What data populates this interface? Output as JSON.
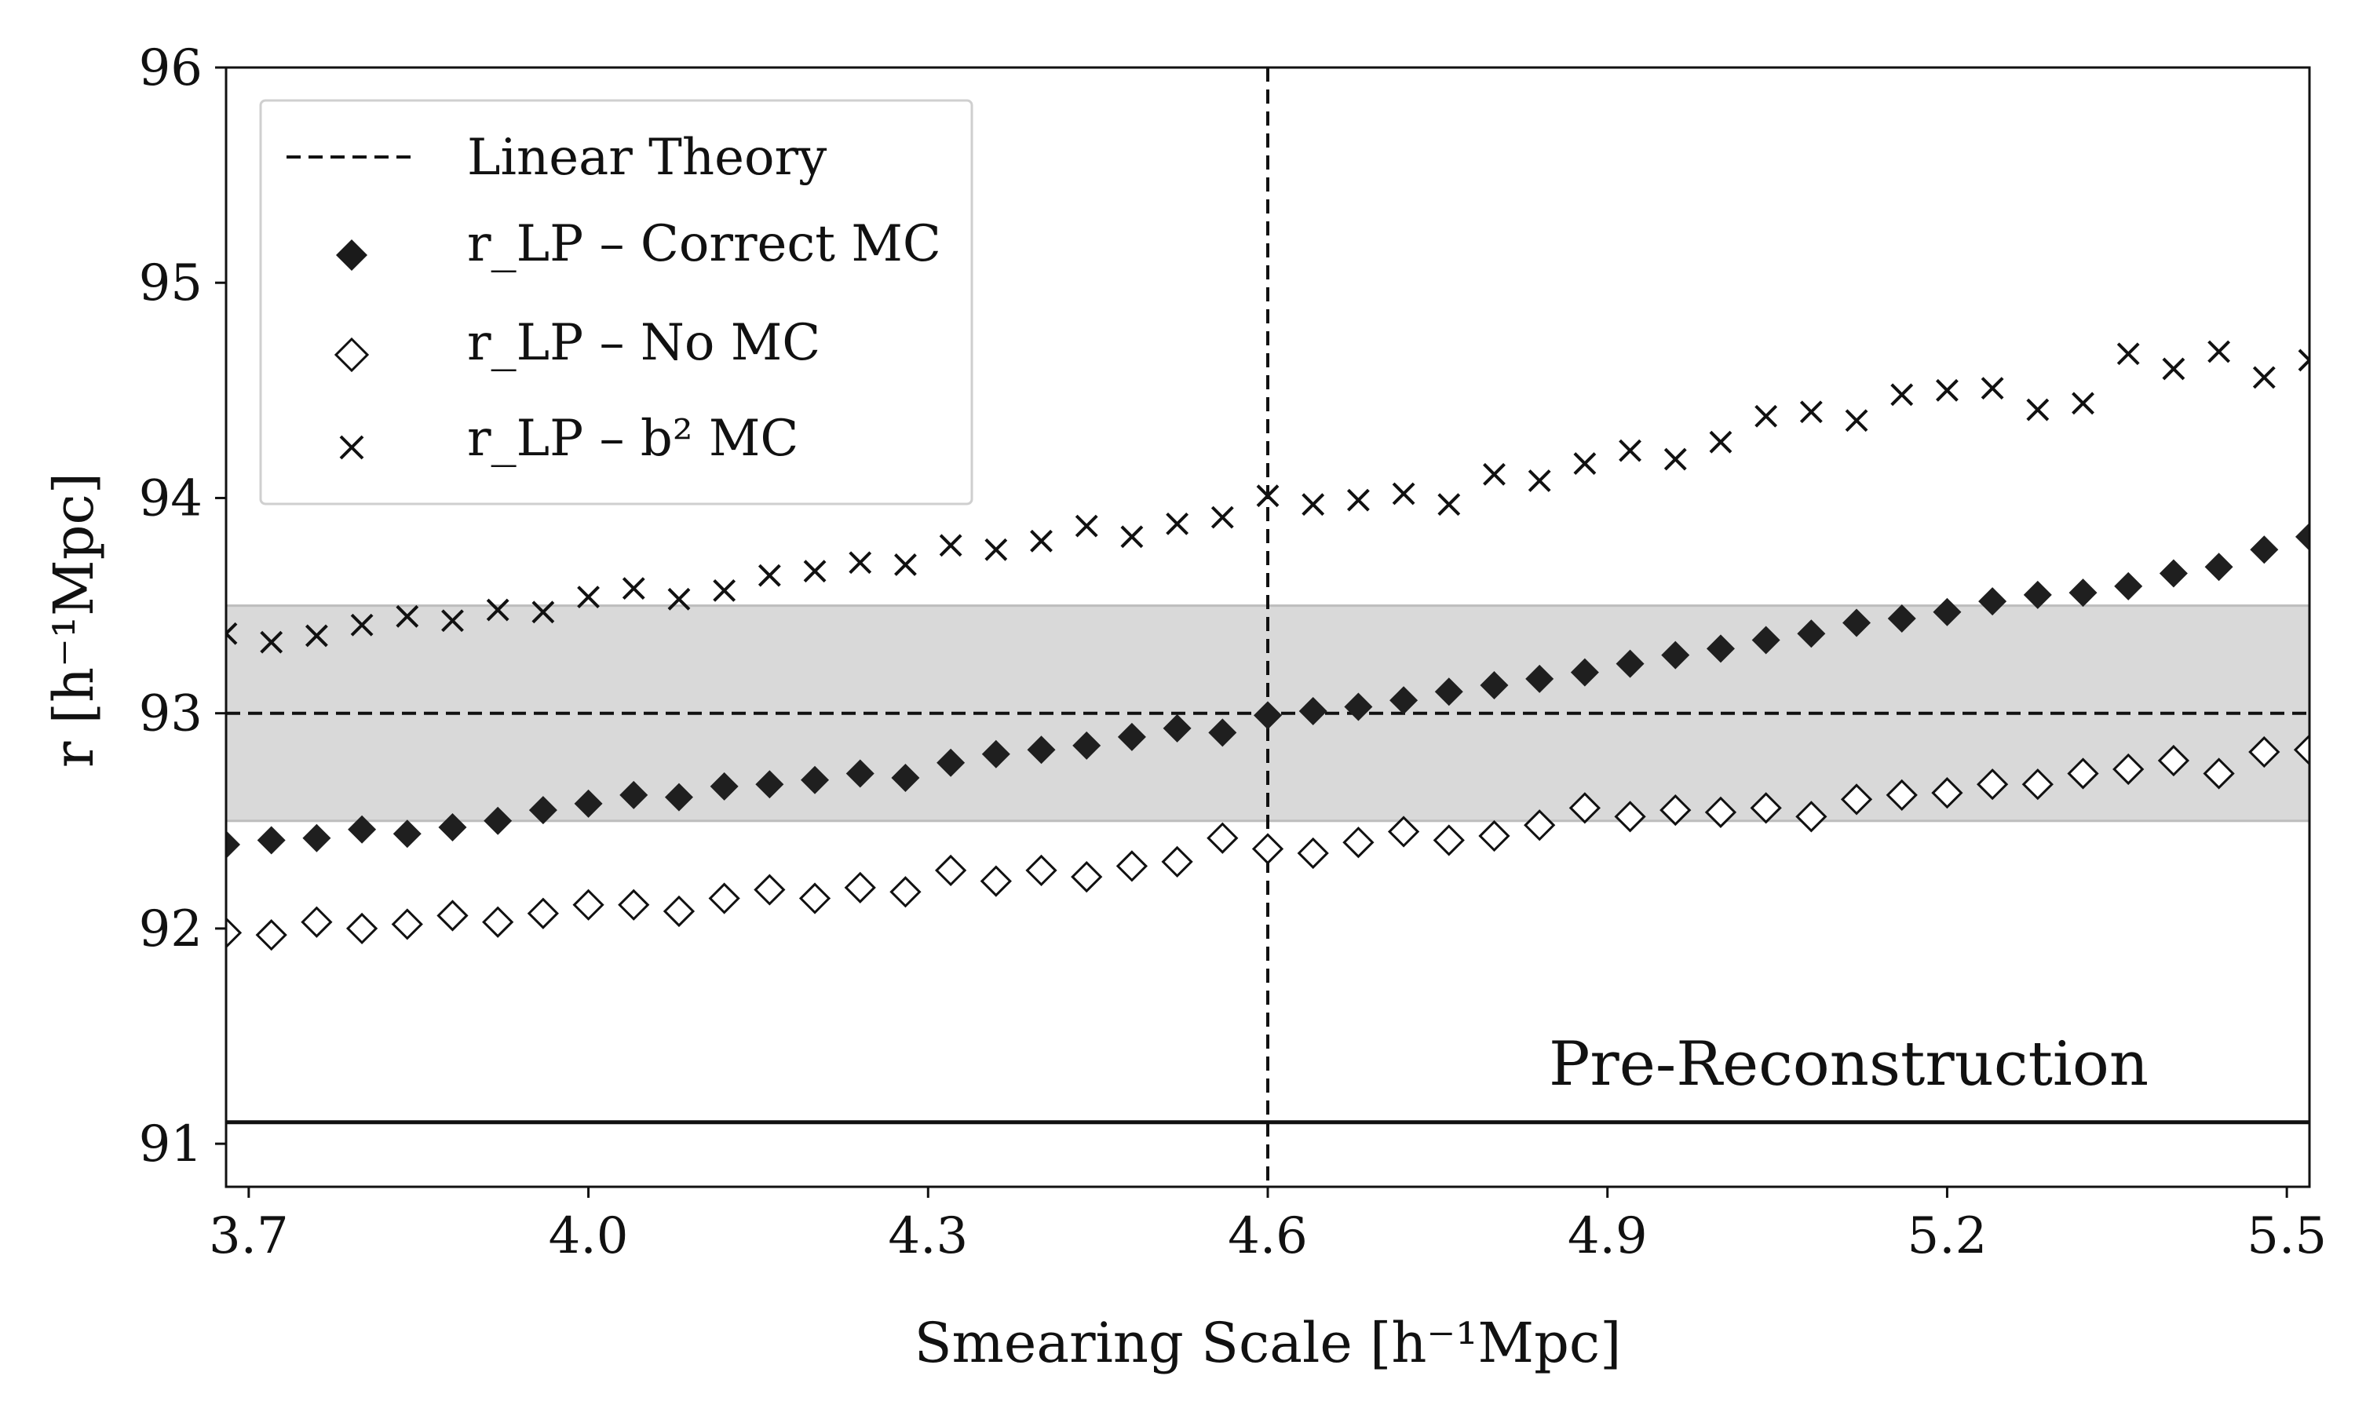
{
  "chart_data": {
    "type": "scatter",
    "xlabel": "Smearing Scale [h⁻¹Mpc]",
    "ylabel": "r [h⁻¹Mpc]",
    "xlim": [
      3.68,
      5.52
    ],
    "ylim": [
      90.8,
      96.0
    ],
    "xticks": [
      "3.7",
      "4.0",
      "4.3",
      "4.6",
      "4.9",
      "5.2",
      "5.5"
    ],
    "yticks": [
      "91",
      "92",
      "93",
      "94",
      "95",
      "96"
    ],
    "annotation": "Pre-Reconstruction",
    "linear_theory": 93.0,
    "band": [
      92.5,
      93.5
    ],
    "pre_reconstruction": 91.1,
    "vertical_line_x": 4.6,
    "legend": {
      "linear": "Linear Theory",
      "correct": "r_LP – Correct MC",
      "nomc": "r_LP – No MC",
      "b2": "r_LP – b² MC"
    },
    "x": [
      3.68,
      3.72,
      3.76,
      3.8,
      3.84,
      3.88,
      3.92,
      3.96,
      4.0,
      4.04,
      4.08,
      4.12,
      4.16,
      4.2,
      4.24,
      4.28,
      4.32,
      4.36,
      4.4,
      4.44,
      4.48,
      4.52,
      4.56,
      4.6,
      4.64,
      4.68,
      4.72,
      4.76,
      4.8,
      4.84,
      4.88,
      4.92,
      4.96,
      5.0,
      5.04,
      5.08,
      5.12,
      5.16,
      5.2,
      5.24,
      5.28,
      5.32,
      5.36,
      5.4,
      5.44,
      5.48,
      5.52
    ],
    "series": [
      {
        "name": "r_LP – Correct MC",
        "marker": "filled-diamond",
        "values": [
          92.39,
          92.41,
          92.42,
          92.46,
          92.44,
          92.47,
          92.5,
          92.55,
          92.58,
          92.62,
          92.61,
          92.66,
          92.67,
          92.69,
          92.72,
          92.7,
          92.77,
          92.81,
          92.83,
          92.85,
          92.89,
          92.93,
          92.91,
          92.99,
          93.01,
          93.03,
          93.06,
          93.1,
          93.13,
          93.16,
          93.19,
          93.23,
          93.27,
          93.3,
          93.34,
          93.37,
          93.42,
          93.44,
          93.47,
          93.52,
          93.55,
          93.56,
          93.59,
          93.65,
          93.68,
          93.76,
          93.82
        ]
      },
      {
        "name": "r_LP – No MC",
        "marker": "open-diamond",
        "values": [
          91.98,
          91.97,
          92.03,
          92.0,
          92.02,
          92.06,
          92.03,
          92.07,
          92.11,
          92.11,
          92.08,
          92.14,
          92.18,
          92.14,
          92.19,
          92.17,
          92.27,
          92.22,
          92.27,
          92.24,
          92.29,
          92.31,
          92.42,
          92.37,
          92.35,
          92.4,
          92.45,
          92.41,
          92.43,
          92.48,
          92.56,
          92.52,
          92.55,
          92.54,
          92.56,
          92.52,
          92.6,
          92.62,
          92.63,
          92.67,
          92.67,
          92.72,
          92.74,
          92.78,
          92.72,
          92.82,
          92.83
        ]
      },
      {
        "name": "r_LP – b² MC",
        "marker": "cross",
        "values": [
          93.37,
          93.33,
          93.36,
          93.41,
          93.45,
          93.43,
          93.48,
          93.47,
          93.54,
          93.58,
          93.53,
          93.57,
          93.64,
          93.66,
          93.7,
          93.69,
          93.78,
          93.76,
          93.8,
          93.87,
          93.82,
          93.88,
          93.91,
          94.01,
          93.97,
          93.99,
          94.02,
          93.97,
          94.11,
          94.08,
          94.16,
          94.22,
          94.18,
          94.26,
          94.38,
          94.4,
          94.36,
          94.48,
          94.5,
          94.51,
          94.41,
          94.44,
          94.67,
          94.6,
          94.68,
          94.56,
          94.64
        ]
      }
    ]
  }
}
